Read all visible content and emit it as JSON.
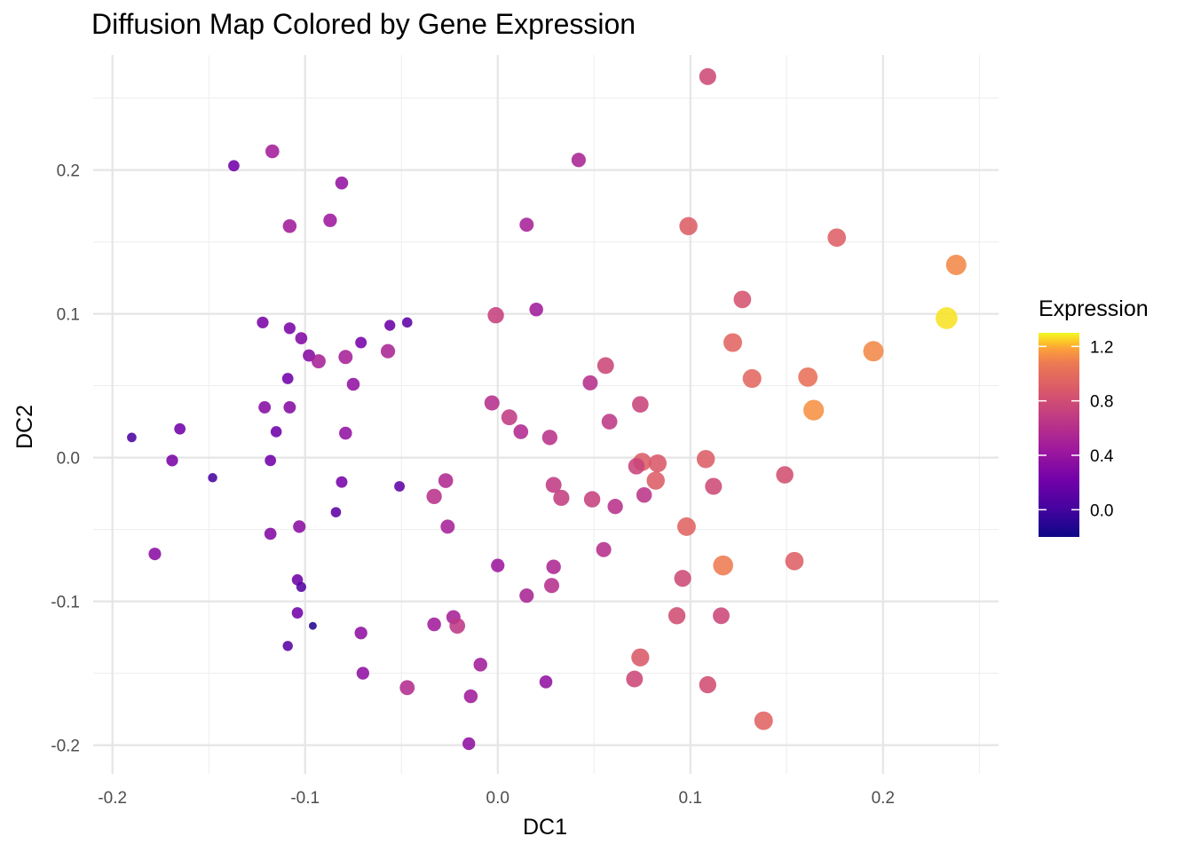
{
  "chart_data": {
    "type": "scatter",
    "title": "Diffusion Map Colored by Gene Expression",
    "xlabel": "DC1",
    "ylabel": "DC2",
    "xlim": [
      -0.21,
      0.26
    ],
    "ylim": [
      -0.22,
      0.28
    ],
    "x_ticks": [
      -0.2,
      -0.1,
      0.0,
      0.1,
      0.2
    ],
    "x_tick_labels": [
      "-0.2",
      "-0.1",
      "0.0",
      "0.1",
      "0.2"
    ],
    "y_ticks": [
      -0.2,
      -0.1,
      0.0,
      0.1,
      0.2
    ],
    "y_tick_labels": [
      "-0.2",
      "-0.1",
      "0.0",
      "0.1",
      "0.2"
    ],
    "grid": true,
    "color_scale": "plasma",
    "size_mapped_to": "Expression",
    "legend": {
      "title": "Expression",
      "placement": "right",
      "range": [
        -0.2,
        1.3
      ],
      "ticks": [
        0.0,
        0.4,
        0.8,
        1.2
      ],
      "tick_labels": [
        "0.0",
        "0.4",
        "0.8",
        "1.2"
      ]
    },
    "points": [
      {
        "x": 0.109,
        "y": 0.265,
        "expression": 0.78
      },
      {
        "x": -0.117,
        "y": 0.213,
        "expression": 0.47
      },
      {
        "x": -0.137,
        "y": 0.203,
        "expression": 0.22
      },
      {
        "x": -0.081,
        "y": 0.191,
        "expression": 0.38
      },
      {
        "x": 0.042,
        "y": 0.207,
        "expression": 0.52
      },
      {
        "x": -0.108,
        "y": 0.161,
        "expression": 0.46
      },
      {
        "x": -0.087,
        "y": 0.165,
        "expression": 0.44
      },
      {
        "x": 0.015,
        "y": 0.162,
        "expression": 0.5
      },
      {
        "x": 0.099,
        "y": 0.161,
        "expression": 0.9
      },
      {
        "x": 0.176,
        "y": 0.153,
        "expression": 0.92
      },
      {
        "x": 0.238,
        "y": 0.134,
        "expression": 1.12
      },
      {
        "x": 0.127,
        "y": 0.11,
        "expression": 0.84
      },
      {
        "x": -0.001,
        "y": 0.099,
        "expression": 0.72
      },
      {
        "x": 0.02,
        "y": 0.103,
        "expression": 0.46
      },
      {
        "x": 0.233,
        "y": 0.097,
        "expression": 1.27
      },
      {
        "x": -0.122,
        "y": 0.094,
        "expression": 0.26
      },
      {
        "x": -0.108,
        "y": 0.09,
        "expression": 0.26
      },
      {
        "x": -0.102,
        "y": 0.083,
        "expression": 0.3
      },
      {
        "x": -0.071,
        "y": 0.08,
        "expression": 0.24
      },
      {
        "x": -0.056,
        "y": 0.092,
        "expression": 0.18
      },
      {
        "x": -0.047,
        "y": 0.094,
        "expression": 0.12
      },
      {
        "x": 0.122,
        "y": 0.08,
        "expression": 0.95
      },
      {
        "x": 0.195,
        "y": 0.074,
        "expression": 1.12
      },
      {
        "x": -0.098,
        "y": 0.071,
        "expression": 0.32
      },
      {
        "x": -0.093,
        "y": 0.067,
        "expression": 0.5
      },
      {
        "x": -0.079,
        "y": 0.07,
        "expression": 0.5
      },
      {
        "x": -0.057,
        "y": 0.074,
        "expression": 0.52
      },
      {
        "x": 0.056,
        "y": 0.064,
        "expression": 0.76
      },
      {
        "x": -0.109,
        "y": 0.055,
        "expression": 0.22
      },
      {
        "x": -0.075,
        "y": 0.051,
        "expression": 0.38
      },
      {
        "x": 0.048,
        "y": 0.052,
        "expression": 0.6
      },
      {
        "x": 0.132,
        "y": 0.055,
        "expression": 0.96
      },
      {
        "x": 0.161,
        "y": 0.056,
        "expression": 1.02
      },
      {
        "x": -0.121,
        "y": 0.035,
        "expression": 0.32
      },
      {
        "x": -0.108,
        "y": 0.035,
        "expression": 0.32
      },
      {
        "x": -0.003,
        "y": 0.038,
        "expression": 0.6
      },
      {
        "x": 0.074,
        "y": 0.037,
        "expression": 0.74
      },
      {
        "x": 0.164,
        "y": 0.033,
        "expression": 1.14
      },
      {
        "x": 0.006,
        "y": 0.028,
        "expression": 0.68
      },
      {
        "x": 0.058,
        "y": 0.025,
        "expression": 0.66
      },
      {
        "x": -0.165,
        "y": 0.02,
        "expression": 0.22
      },
      {
        "x": -0.115,
        "y": 0.018,
        "expression": 0.2
      },
      {
        "x": -0.079,
        "y": 0.017,
        "expression": 0.38
      },
      {
        "x": 0.012,
        "y": 0.018,
        "expression": 0.56
      },
      {
        "x": 0.027,
        "y": 0.014,
        "expression": 0.62
      },
      {
        "x": -0.19,
        "y": 0.014,
        "expression": 0.04
      },
      {
        "x": -0.169,
        "y": -0.002,
        "expression": 0.26
      },
      {
        "x": -0.118,
        "y": -0.002,
        "expression": 0.22
      },
      {
        "x": 0.075,
        "y": -0.003,
        "expression": 0.9
      },
      {
        "x": 0.083,
        "y": -0.004,
        "expression": 0.88
      },
      {
        "x": 0.108,
        "y": -0.001,
        "expression": 0.9
      },
      {
        "x": 0.072,
        "y": -0.006,
        "expression": 0.74
      },
      {
        "x": -0.148,
        "y": -0.014,
        "expression": 0.02
      },
      {
        "x": 0.082,
        "y": -0.016,
        "expression": 0.9
      },
      {
        "x": -0.081,
        "y": -0.017,
        "expression": 0.24
      },
      {
        "x": -0.027,
        "y": -0.016,
        "expression": 0.56
      },
      {
        "x": -0.051,
        "y": -0.02,
        "expression": 0.14
      },
      {
        "x": 0.029,
        "y": -0.019,
        "expression": 0.68
      },
      {
        "x": 0.112,
        "y": -0.02,
        "expression": 0.78
      },
      {
        "x": 0.149,
        "y": -0.012,
        "expression": 0.82
      },
      {
        "x": -0.033,
        "y": -0.027,
        "expression": 0.62
      },
      {
        "x": 0.033,
        "y": -0.028,
        "expression": 0.7
      },
      {
        "x": 0.049,
        "y": -0.029,
        "expression": 0.72
      },
      {
        "x": 0.061,
        "y": -0.034,
        "expression": 0.62
      },
      {
        "x": 0.076,
        "y": -0.026,
        "expression": 0.64
      },
      {
        "x": -0.084,
        "y": -0.038,
        "expression": 0.12
      },
      {
        "x": -0.103,
        "y": -0.048,
        "expression": 0.34
      },
      {
        "x": -0.118,
        "y": -0.053,
        "expression": 0.3
      },
      {
        "x": -0.026,
        "y": -0.048,
        "expression": 0.5
      },
      {
        "x": 0.098,
        "y": -0.048,
        "expression": 0.94
      },
      {
        "x": -0.178,
        "y": -0.067,
        "expression": 0.34
      },
      {
        "x": 0.055,
        "y": -0.064,
        "expression": 0.6
      },
      {
        "x": 0.0,
        "y": -0.075,
        "expression": 0.44
      },
      {
        "x": 0.029,
        "y": -0.076,
        "expression": 0.54
      },
      {
        "x": 0.117,
        "y": -0.075,
        "expression": 1.08
      },
      {
        "x": 0.154,
        "y": -0.072,
        "expression": 0.92
      },
      {
        "x": -0.104,
        "y": -0.085,
        "expression": 0.2
      },
      {
        "x": -0.102,
        "y": -0.09,
        "expression": 0.08
      },
      {
        "x": 0.096,
        "y": -0.084,
        "expression": 0.78
      },
      {
        "x": 0.015,
        "y": -0.096,
        "expression": 0.52
      },
      {
        "x": 0.028,
        "y": -0.089,
        "expression": 0.6
      },
      {
        "x": -0.104,
        "y": -0.108,
        "expression": 0.22
      },
      {
        "x": -0.096,
        "y": -0.117,
        "expression": -0.12
      },
      {
        "x": -0.033,
        "y": -0.116,
        "expression": 0.46
      },
      {
        "x": -0.023,
        "y": -0.111,
        "expression": 0.5
      },
      {
        "x": -0.021,
        "y": -0.117,
        "expression": 0.66
      },
      {
        "x": 0.093,
        "y": -0.11,
        "expression": 0.8
      },
      {
        "x": 0.116,
        "y": -0.11,
        "expression": 0.76
      },
      {
        "x": -0.071,
        "y": -0.122,
        "expression": 0.36
      },
      {
        "x": -0.109,
        "y": -0.131,
        "expression": 0.1
      },
      {
        "x": 0.074,
        "y": -0.139,
        "expression": 0.88
      },
      {
        "x": -0.009,
        "y": -0.144,
        "expression": 0.46
      },
      {
        "x": -0.07,
        "y": -0.15,
        "expression": 0.36
      },
      {
        "x": 0.025,
        "y": -0.156,
        "expression": 0.38
      },
      {
        "x": 0.071,
        "y": -0.154,
        "expression": 0.76
      },
      {
        "x": 0.109,
        "y": -0.158,
        "expression": 0.8
      },
      {
        "x": -0.047,
        "y": -0.16,
        "expression": 0.58
      },
      {
        "x": -0.014,
        "y": -0.166,
        "expression": 0.46
      },
      {
        "x": 0.138,
        "y": -0.183,
        "expression": 0.94
      },
      {
        "x": -0.015,
        "y": -0.199,
        "expression": 0.36
      }
    ]
  }
}
